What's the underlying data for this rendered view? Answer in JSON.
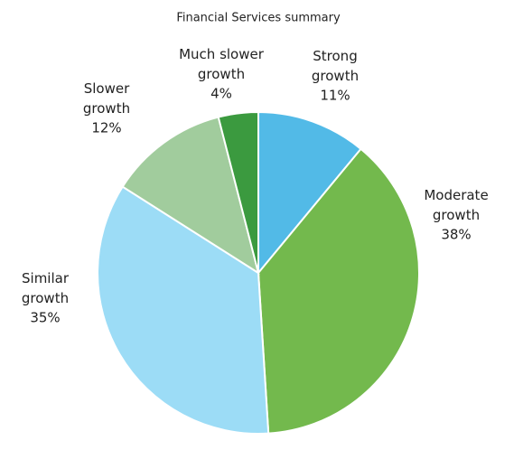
{
  "chart_data": {
    "type": "pie",
    "title": "Financial Services summary",
    "categories": [
      "Strong growth",
      "Moderate growth",
      "Similar growth",
      "Slower growth",
      "Much slower growth"
    ],
    "values": [
      11,
      38,
      35,
      12,
      4
    ],
    "value_labels": [
      "11%",
      "38%",
      "35%",
      "12%",
      "4%"
    ],
    "colors": [
      "#52bae7",
      "#73b94d",
      "#9cdcf6",
      "#a1cc9d",
      "#3b9a3f"
    ]
  }
}
